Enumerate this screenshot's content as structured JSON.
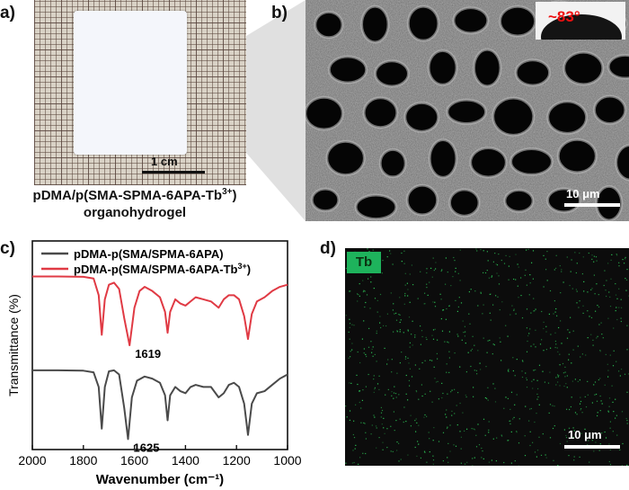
{
  "panels": {
    "a": {
      "letter": "a)",
      "scale_label": "1 cm",
      "caption_line1": "pDMA/p(SMA-SPMA-6APA-Tb",
      "caption_sup": "3+",
      "caption_close": ")",
      "caption_line2": "organohydrogel"
    },
    "b": {
      "letter": "b)",
      "contact_angle": "~83°",
      "scale_label": "10 μm"
    },
    "c": {
      "letter": "c)"
    },
    "d": {
      "letter": "d)",
      "element_badge": "Tb",
      "scale_label": "10 μm"
    }
  },
  "colors": {
    "trace_black": "#4a4a4a",
    "trace_red": "#e03a44",
    "tb_dot": "#2fd05a",
    "badge": "#1eb35c"
  },
  "chart_data": {
    "type": "line",
    "xlabel": "Wavenumber (cm⁻¹)",
    "ylabel": "Transmittance (%)",
    "xlim": [
      2000,
      1000
    ],
    "x_reversed": true,
    "xticks": [
      2000,
      1800,
      1600,
      1400,
      1200,
      1000
    ],
    "ylim": [
      0,
      1
    ],
    "y_ticks_shown": false,
    "legend_position": "top",
    "series": [
      {
        "name": "pDMA-p(SMA/SPMA-6APA)",
        "color": "#4a4a4a",
        "x": [
          2000,
          1900,
          1800,
          1760,
          1740,
          1728,
          1716,
          1700,
          1680,
          1660,
          1640,
          1625,
          1610,
          1590,
          1560,
          1530,
          1500,
          1480,
          1470,
          1460,
          1440,
          1420,
          1400,
          1380,
          1360,
          1330,
          1300,
          1270,
          1250,
          1230,
          1210,
          1190,
          1170,
          1155,
          1140,
          1120,
          1090,
          1060,
          1030,
          1000
        ],
        "y": [
          0.38,
          0.38,
          0.378,
          0.37,
          0.3,
          0.1,
          0.3,
          0.375,
          0.38,
          0.36,
          0.2,
          0.05,
          0.25,
          0.33,
          0.35,
          0.34,
          0.32,
          0.26,
          0.14,
          0.26,
          0.3,
          0.28,
          0.27,
          0.3,
          0.31,
          0.3,
          0.3,
          0.25,
          0.27,
          0.31,
          0.32,
          0.3,
          0.22,
          0.07,
          0.22,
          0.27,
          0.28,
          0.31,
          0.34,
          0.36
        ]
      },
      {
        "name": "pDMA-p(SMA/SPMA-6APA-Tb",
        "name_sup": "3+",
        "name_close": ")",
        "color": "#e03a44",
        "x": [
          2000,
          1900,
          1800,
          1760,
          1740,
          1728,
          1716,
          1700,
          1680,
          1660,
          1640,
          1619,
          1600,
          1580,
          1560,
          1530,
          1500,
          1480,
          1470,
          1460,
          1440,
          1420,
          1400,
          1380,
          1360,
          1330,
          1300,
          1270,
          1250,
          1230,
          1210,
          1190,
          1170,
          1155,
          1140,
          1120,
          1090,
          1060,
          1030,
          1000
        ],
        "y": [
          0.83,
          0.83,
          0.828,
          0.82,
          0.74,
          0.55,
          0.72,
          0.79,
          0.8,
          0.77,
          0.63,
          0.5,
          0.68,
          0.76,
          0.78,
          0.76,
          0.73,
          0.66,
          0.56,
          0.66,
          0.72,
          0.7,
          0.69,
          0.71,
          0.73,
          0.72,
          0.71,
          0.68,
          0.72,
          0.74,
          0.74,
          0.72,
          0.64,
          0.53,
          0.65,
          0.71,
          0.73,
          0.76,
          0.78,
          0.79
        ]
      }
    ],
    "annotations": [
      {
        "text": "1619",
        "x": 1619,
        "series": 1
      },
      {
        "text": "1625",
        "x": 1625,
        "series": 0
      }
    ]
  }
}
